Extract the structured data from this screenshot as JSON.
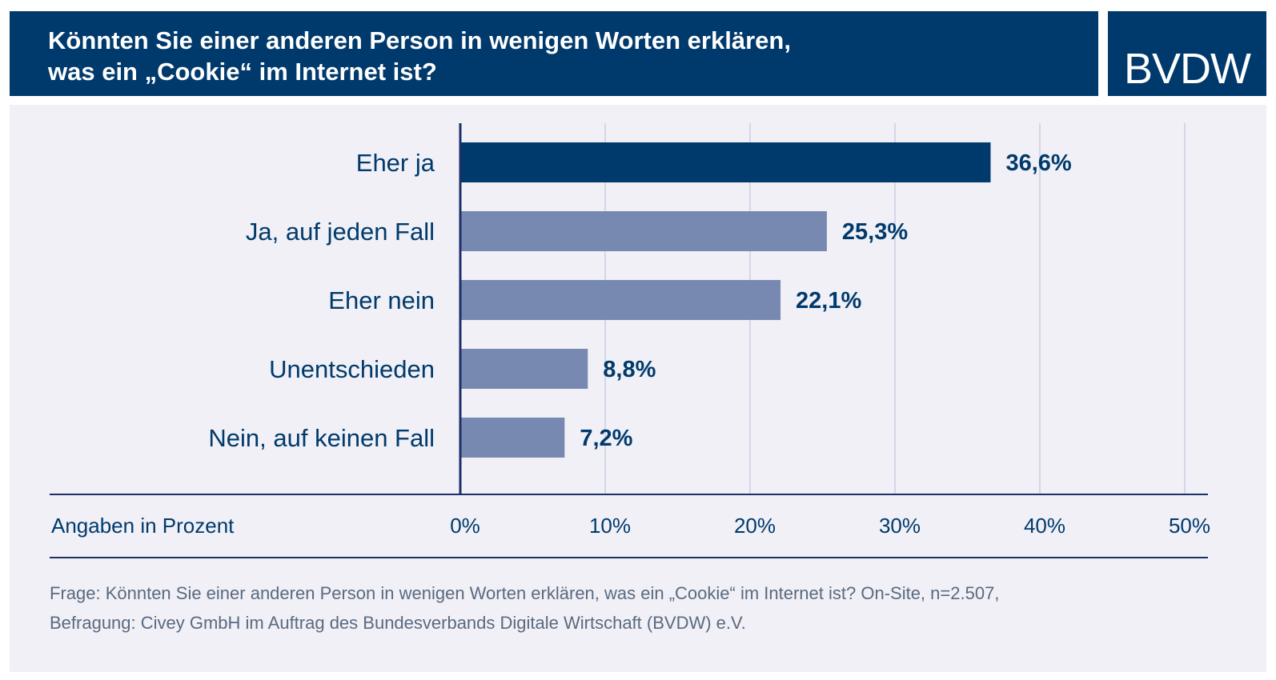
{
  "header": {
    "title_line1": "Könnten Sie einer anderen Person in wenigen Worten erklären,",
    "title_line2": "was ein „Cookie“ im Internet ist?",
    "logo": "BVDW"
  },
  "chart_data": {
    "type": "bar",
    "orientation": "horizontal",
    "categories": [
      "Eher ja",
      "Ja, auf jeden Fall",
      "Eher nein",
      "Unentschieden",
      "Nein, auf keinen Fall"
    ],
    "values": [
      36.6,
      25.3,
      22.1,
      8.8,
      7.2
    ],
    "value_labels": [
      "36,6%",
      "25,3%",
      "22,1%",
      "8,8%",
      "7,2%"
    ],
    "highlight_index": 0,
    "xlabel": "Angaben in Prozent",
    "xlim": [
      0,
      50
    ],
    "xticks": [
      0,
      10,
      20,
      30,
      40,
      50
    ],
    "xtick_labels": [
      "0%",
      "10%",
      "20%",
      "30%",
      "40%",
      "50%"
    ],
    "grid": true,
    "colors": {
      "highlight": "#003a6c",
      "bar": "#7789b0",
      "grid": "#d3d7e6",
      "axis": "#1e2f6a"
    }
  },
  "footnote": {
    "line1": "Frage: Könnten Sie einer anderen Person in wenigen Worten erklären,  was ein „Cookie“ im Internet ist? On-Site, n=2.507,",
    "line2": "Befragung: Civey GmbH im Auftrag des Bundesverbands Digitale Wirtschaft (BVDW) e.V."
  }
}
